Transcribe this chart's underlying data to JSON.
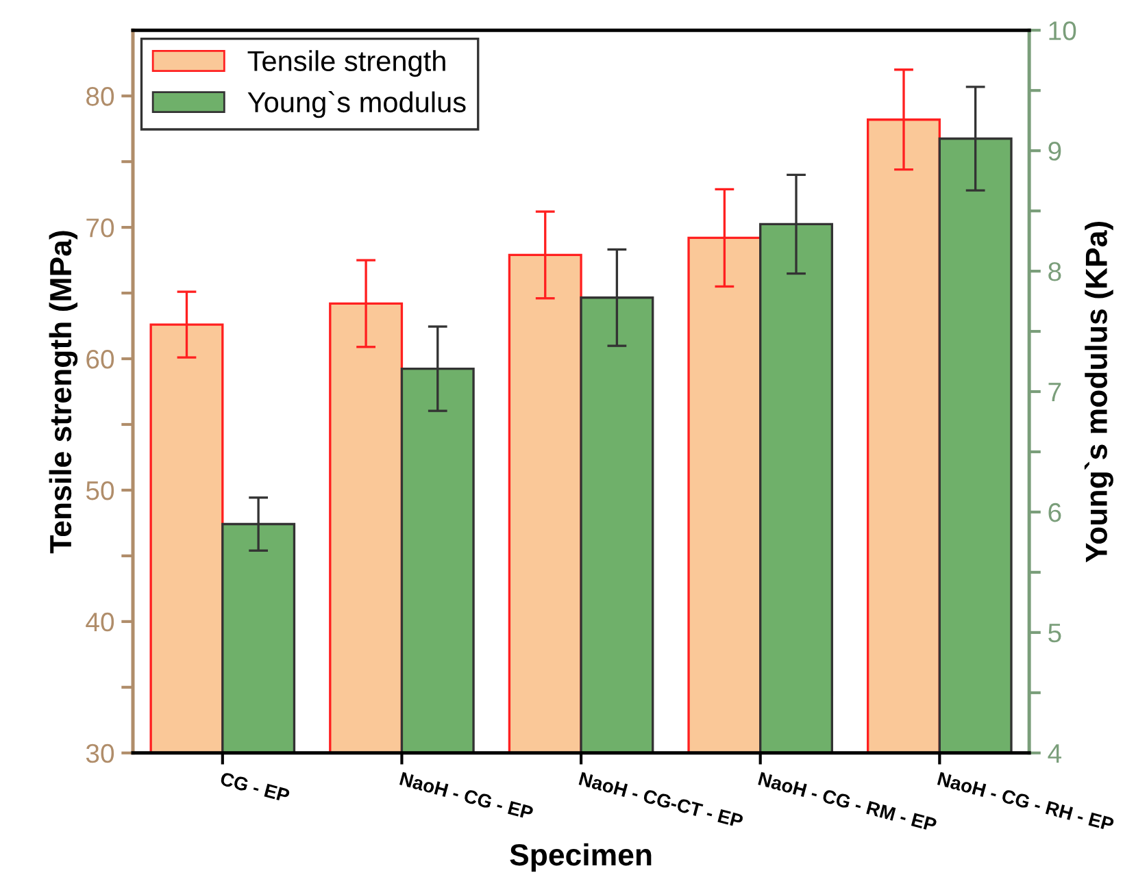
{
  "chart_data": {
    "type": "bar",
    "xlabel": "Specimen",
    "ylabel": "Tensile strength (MPa)",
    "y2label": "Young`s modulus (KPa)",
    "categories": [
      "CG - EP",
      "NaoH - CG - EP",
      "NaoH - CG-CT - EP",
      "NaoH - CG - RM - EP",
      "NaoH - CG - RH - EP"
    ],
    "series": [
      {
        "name": "Tensile strength",
        "color": "#fac898",
        "values": [
          62.6,
          64.2,
          67.9,
          69.2,
          78.2
        ],
        "errors": [
          2.5,
          3.3,
          3.3,
          3.7,
          3.8
        ]
      },
      {
        "name": "Young`s modulus",
        "color": "#6fb06a",
        "axis": "y2",
        "values": [
          5.9,
          7.19,
          7.78,
          8.39,
          9.1
        ],
        "errors": [
          0.22,
          0.35,
          0.4,
          0.41,
          0.43
        ]
      }
    ],
    "ylim": [
      30,
      85
    ],
    "yticks": [
      30,
      {
        "value": 35,
        "label": null
      },
      40,
      {
        "value": 45,
        "label": null
      },
      50,
      {
        "value": 55,
        "label": null
      },
      60,
      {
        "value": 65,
        "label": null
      },
      70,
      {
        "value": 75,
        "label": null
      },
      80
    ],
    "y2lim": [
      4,
      10
    ],
    "y2ticks": [
      4,
      {
        "value": 4.5,
        "label": null
      },
      5,
      {
        "value": 5.5,
        "label": null
      },
      6,
      {
        "value": 6.5,
        "label": null
      },
      7,
      {
        "value": 7.5,
        "label": null
      },
      8,
      {
        "value": 8.5,
        "label": null
      },
      9,
      {
        "value": 9.5,
        "label": null
      },
      10
    ],
    "legend": "top left",
    "grid": false
  }
}
